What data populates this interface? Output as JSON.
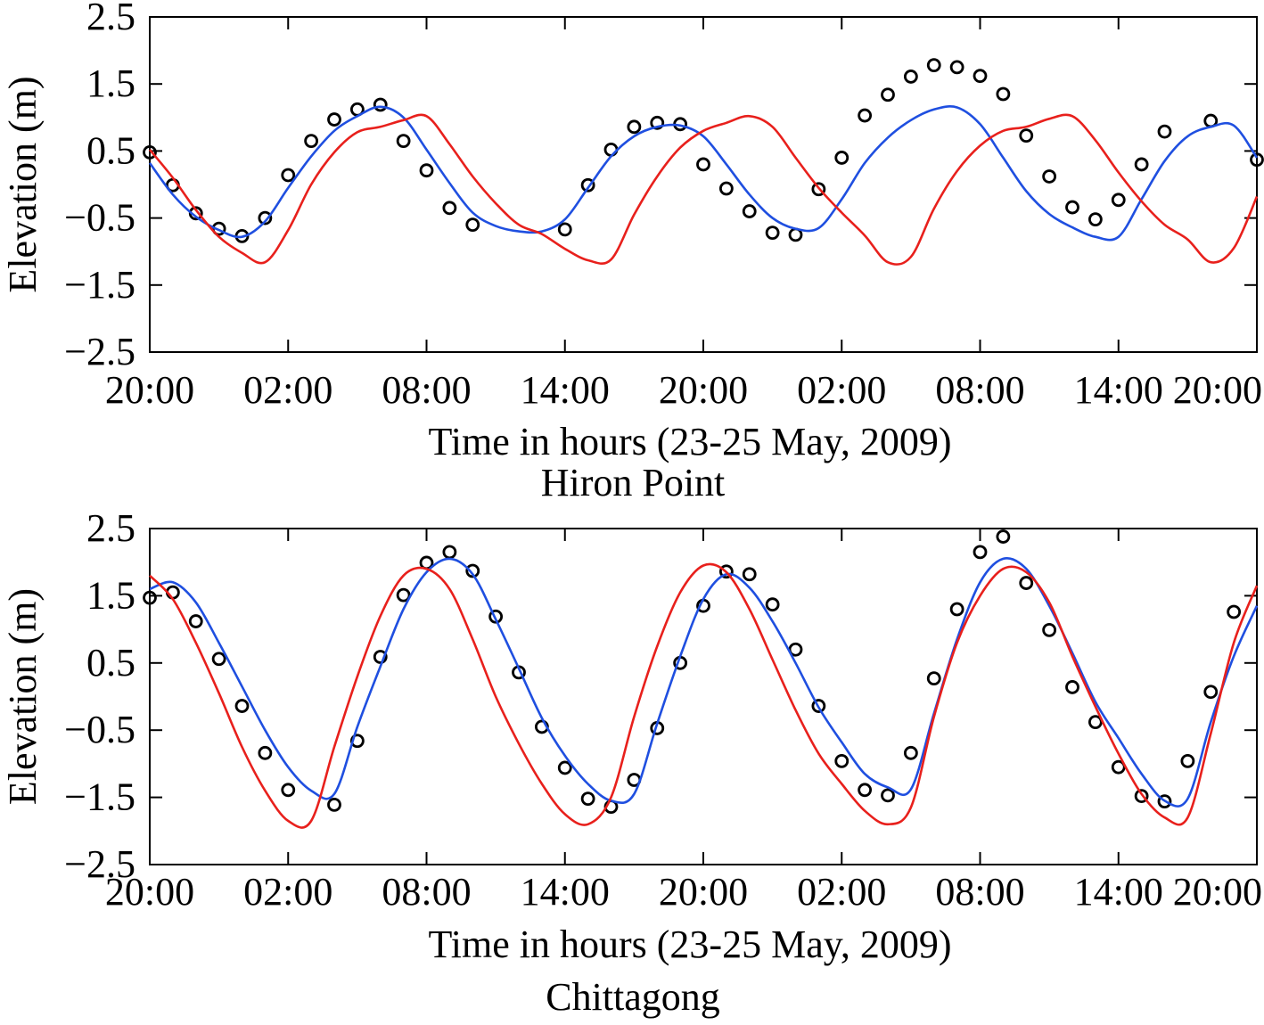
{
  "chart_data": [
    {
      "type": "line",
      "caption": "Hiron Point",
      "xlabel": "Time in hours (23-25 May, 2009)",
      "ylabel": "Elevation (m)",
      "ylim": [
        -2.5,
        2.5
      ],
      "yticks": [
        -2.5,
        -1.5,
        -0.5,
        0.5,
        1.5,
        2.5
      ],
      "ytick_labels": [
        "−2.5",
        "−1.5",
        "−0.5",
        "0.5",
        "1.5",
        "2.5"
      ],
      "xlim": [
        0,
        48
      ],
      "xticks": [
        0,
        6,
        12,
        18,
        24,
        30,
        36,
        42,
        48
      ],
      "xtick_labels": [
        "20:00",
        "02:00",
        "08:00",
        "14:00",
        "20:00",
        "02:00",
        "08:00",
        "14:00",
        "20:00"
      ],
      "grid": false,
      "series": [
        {
          "style": "markers",
          "color": "#000000",
          "x": [
            0,
            1,
            2,
            3,
            4,
            5,
            6,
            7,
            8,
            9,
            10,
            11,
            12,
            13,
            14,
            15,
            16,
            17,
            18,
            19,
            20,
            21,
            22,
            23,
            24,
            25,
            26,
            27,
            28,
            29,
            30,
            31,
            32,
            33,
            34,
            35,
            36,
            37,
            38,
            39,
            40,
            41,
            42,
            43,
            44,
            45,
            46,
            47,
            48
          ],
          "y": [
            0.48,
            -0.01,
            -0.43,
            -0.66,
            -0.77,
            -0.5,
            0.14,
            0.65,
            0.97,
            1.12,
            1.19,
            0.65,
            0.21,
            -0.35,
            -0.6,
            null,
            null,
            null,
            -0.67,
            -0.01,
            0.52,
            0.86,
            0.92,
            0.9,
            0.3,
            -0.06,
            -0.4,
            -0.72,
            -0.75,
            -0.07,
            0.4,
            1.03,
            1.34,
            1.61,
            1.78,
            1.75,
            1.62,
            1.35,
            0.73,
            0.12,
            -0.34,
            -0.52,
            -0.23,
            0.3,
            0.79,
            null,
            0.95,
            null,
            0.37
          ]
        },
        {
          "style": "line",
          "color": "#1f4fe0",
          "x": [
            0,
            1,
            2,
            3,
            4,
            5,
            6,
            7,
            8,
            9,
            10,
            11,
            12,
            13,
            14,
            15,
            16,
            17,
            18,
            19,
            20,
            21,
            22,
            23,
            24,
            25,
            26,
            27,
            28,
            29,
            30,
            31,
            32,
            33,
            34,
            35,
            36,
            37,
            38,
            39,
            40,
            41,
            42,
            43,
            44,
            45,
            46,
            47,
            48
          ],
          "y": [
            0.32,
            -0.15,
            -0.48,
            -0.68,
            -0.78,
            -0.55,
            -0.05,
            0.42,
            0.8,
            1.02,
            1.16,
            1.0,
            0.52,
            0.02,
            -0.42,
            -0.62,
            -0.7,
            -0.7,
            -0.52,
            -0.05,
            0.42,
            0.72,
            0.86,
            0.88,
            0.72,
            0.3,
            -0.15,
            -0.5,
            -0.66,
            -0.65,
            -0.22,
            0.32,
            0.7,
            0.96,
            1.12,
            1.15,
            0.9,
            0.4,
            -0.1,
            -0.44,
            -0.64,
            -0.78,
            -0.78,
            -0.22,
            0.35,
            0.72,
            0.86,
            0.88,
            0.4
          ]
        },
        {
          "style": "line",
          "color": "#e8201c",
          "x": [
            0,
            1,
            2,
            3,
            4,
            5,
            6,
            7,
            8,
            9,
            10,
            11,
            12,
            13,
            14,
            15,
            16,
            17,
            18,
            19,
            20,
            21,
            22,
            23,
            24,
            25,
            26,
            27,
            28,
            29,
            30,
            31,
            32,
            33,
            34,
            35,
            36,
            37,
            38,
            39,
            40,
            41,
            42,
            43,
            44,
            45,
            46,
            47,
            48
          ],
          "y": [
            0.52,
            0.1,
            -0.38,
            -0.78,
            -1.02,
            -1.16,
            -0.68,
            0.0,
            0.48,
            0.78,
            0.86,
            0.96,
            1.02,
            0.6,
            0.12,
            -0.28,
            -0.6,
            -0.74,
            -0.96,
            -1.13,
            -1.12,
            -0.45,
            0.12,
            0.55,
            0.8,
            0.92,
            1.02,
            0.86,
            0.4,
            -0.05,
            -0.42,
            -0.76,
            -1.16,
            -1.08,
            -0.36,
            0.2,
            0.58,
            0.8,
            0.86,
            0.98,
            1.02,
            0.66,
            0.18,
            -0.25,
            -0.6,
            -0.82,
            -1.16,
            -0.95,
            -0.18
          ]
        }
      ]
    },
    {
      "type": "line",
      "caption": "Chittagong",
      "xlabel": "Time in hours (23-25 May, 2009)",
      "ylabel": "Elevation (m)",
      "ylim": [
        -2.5,
        2.5
      ],
      "yticks": [
        -2.5,
        -1.5,
        -0.5,
        0.5,
        1.5,
        2.5
      ],
      "ytick_labels": [
        "−2.5",
        "−1.5",
        "−0.5",
        "0.5",
        "1.5",
        "2.5"
      ],
      "xlim": [
        0,
        48
      ],
      "xticks": [
        0,
        6,
        12,
        18,
        24,
        30,
        36,
        42,
        48
      ],
      "xtick_labels": [
        "20:00",
        "02:00",
        "08:00",
        "14:00",
        "20:00",
        "02:00",
        "08:00",
        "14:00",
        "20:00"
      ],
      "grid": false,
      "series": [
        {
          "style": "markers",
          "color": "#000000",
          "x": [
            0,
            1,
            2,
            3,
            4,
            5,
            6,
            7,
            8,
            9,
            10,
            11,
            12,
            13,
            14,
            15,
            16,
            17,
            18,
            19,
            20,
            21,
            22,
            23,
            24,
            25,
            26,
            27,
            28,
            29,
            30,
            31,
            32,
            33,
            34,
            35,
            36,
            37,
            38,
            39,
            40,
            41,
            42,
            43,
            44,
            45,
            46,
            47,
            48
          ],
          "y": [
            1.47,
            1.55,
            1.12,
            0.56,
            -0.14,
            -0.84,
            -1.39,
            null,
            -1.61,
            -0.66,
            0.59,
            1.51,
            1.99,
            2.15,
            1.87,
            1.19,
            0.36,
            -0.45,
            -1.06,
            -1.52,
            -1.64,
            -1.24,
            -0.47,
            0.5,
            1.35,
            1.86,
            1.82,
            1.37,
            0.7,
            -0.14,
            -0.96,
            -1.39,
            -1.47,
            -0.84,
            0.27,
            1.3,
            2.15,
            2.38,
            1.69,
            0.99,
            0.14,
            -0.38,
            -1.05,
            -1.48,
            -1.56,
            -0.96,
            0.07,
            1.26,
            null
          ]
        },
        {
          "style": "line",
          "color": "#1f4fe0",
          "x": [
            0,
            1,
            2,
            3,
            4,
            5,
            6,
            7,
            8,
            9,
            10,
            11,
            12,
            13,
            14,
            15,
            16,
            17,
            18,
            19,
            20,
            21,
            22,
            23,
            24,
            25,
            26,
            27,
            28,
            29,
            30,
            31,
            32,
            33,
            34,
            35,
            36,
            37,
            38,
            39,
            40,
            41,
            42,
            43,
            44,
            45,
            46,
            47,
            48
          ],
          "y": [
            1.6,
            1.7,
            1.4,
            0.8,
            0.15,
            -0.5,
            -1.05,
            -1.4,
            -1.45,
            -0.45,
            0.45,
            1.3,
            1.85,
            2.05,
            1.82,
            1.15,
            0.42,
            -0.32,
            -0.88,
            -1.3,
            -1.55,
            -1.45,
            -0.4,
            0.6,
            1.45,
            1.82,
            1.62,
            1.12,
            0.5,
            -0.16,
            -0.68,
            -1.15,
            -1.35,
            -1.38,
            -0.25,
            0.85,
            1.7,
            2.05,
            1.9,
            1.35,
            0.65,
            -0.08,
            -0.62,
            -1.15,
            -1.55,
            -1.52,
            -0.38,
            0.6,
            1.35
          ]
        },
        {
          "style": "line",
          "color": "#e8201c",
          "x": [
            0,
            1,
            2,
            3,
            4,
            5,
            6,
            7,
            8,
            9,
            10,
            11,
            12,
            13,
            14,
            15,
            16,
            17,
            18,
            19,
            20,
            21,
            22,
            23,
            24,
            25,
            26,
            27,
            28,
            29,
            30,
            31,
            32,
            33,
            34,
            35,
            36,
            37,
            38,
            39,
            40,
            41,
            42,
            43,
            44,
            45,
            46,
            47,
            48
          ],
          "y": [
            1.8,
            1.45,
            0.8,
            0.05,
            -0.75,
            -1.4,
            -1.85,
            -1.85,
            -0.75,
            0.3,
            1.2,
            1.8,
            1.9,
            1.6,
            0.85,
            0.0,
            -0.7,
            -1.3,
            -1.75,
            -1.9,
            -1.5,
            -0.3,
            0.75,
            1.55,
            1.95,
            1.85,
            1.3,
            0.55,
            -0.2,
            -0.85,
            -1.3,
            -1.7,
            -1.9,
            -1.65,
            -0.3,
            0.8,
            1.5,
            1.9,
            1.85,
            1.4,
            0.6,
            -0.15,
            -0.85,
            -1.45,
            -1.8,
            -1.8,
            -0.55,
            0.8,
            1.65
          ]
        }
      ]
    }
  ]
}
